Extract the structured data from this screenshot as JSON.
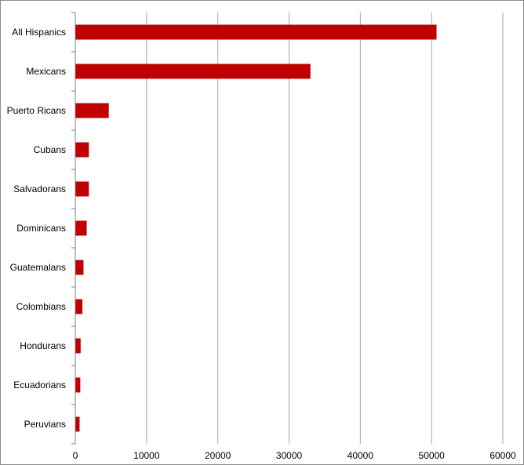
{
  "chart_data": {
    "type": "bar",
    "orientation": "horizontal",
    "categories": [
      "All Hispanics",
      "Mexicans",
      "Puerto Ricans",
      "Cubans",
      "Salvadorans",
      "Dominicans",
      "Guatemalans",
      "Colombians",
      "Hondurans",
      "Ecuadorians",
      "Peruvians"
    ],
    "values": [
      50700,
      33000,
      4700,
      1900,
      1900,
      1600,
      1150,
      1000,
      750,
      700,
      600
    ],
    "xlim": [
      0,
      60000
    ],
    "xticks": [
      "0",
      "10000",
      "20000",
      "30000",
      "40000",
      "50000",
      "60000"
    ],
    "grid": "vertical",
    "legend": "none",
    "colors": {
      "bar": "#c00000",
      "grid": "#a6a6a6",
      "axis": "#7f7f7f"
    }
  }
}
